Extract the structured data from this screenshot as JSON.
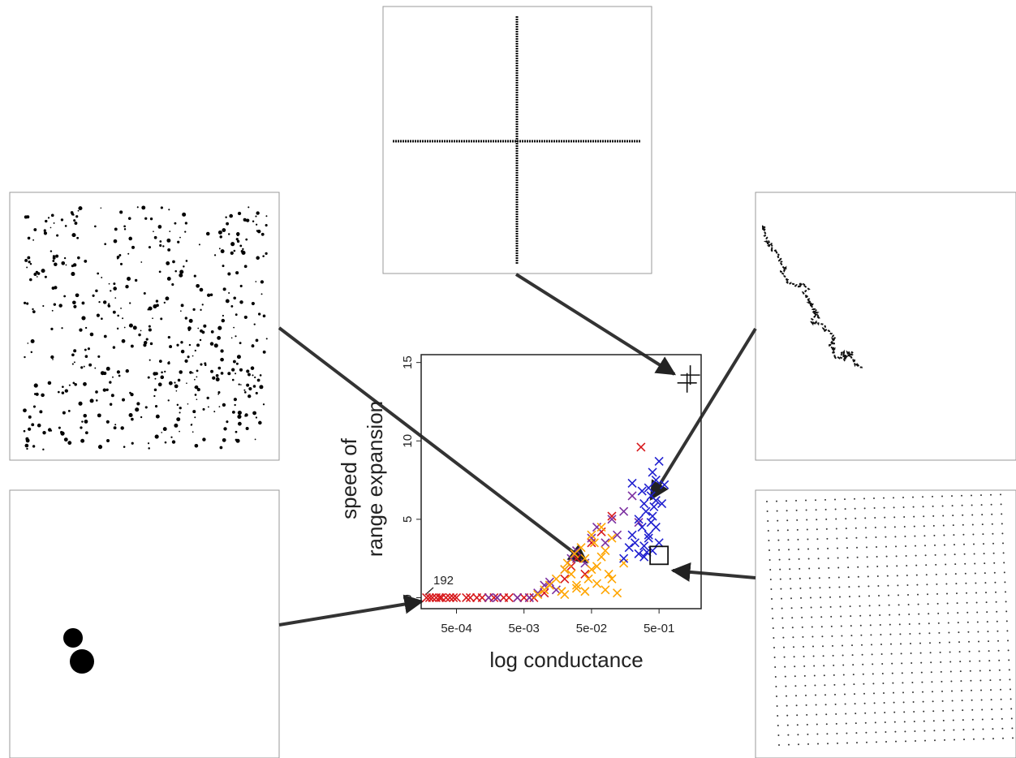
{
  "chart_data": {
    "type": "scatter",
    "xlabel": "log conductance",
    "ylabel": [
      "speed of",
      "range expansion"
    ],
    "annotation": "192",
    "xscale": "log",
    "xlim": [
      0.00015,
      2.1
    ],
    "ylim": [
      -0.7,
      15.5
    ],
    "xticks": [
      {
        "value": 0.0005,
        "label": "5e-04"
      },
      {
        "value": 0.005,
        "label": "5e-03"
      },
      {
        "value": 0.05,
        "label": "5e-02"
      },
      {
        "value": 0.5,
        "label": "5e-01"
      }
    ],
    "yticks": [
      0,
      5,
      10,
      15
    ],
    "series": [
      {
        "color": "#d7191c",
        "marker": "x",
        "x": [
          0.00018,
          0.0002,
          0.00022,
          0.00025,
          0.00028,
          0.0003,
          0.00035,
          0.0004,
          0.00045,
          0.0005,
          0.0007,
          0.0008,
          0.001,
          0.0012,
          0.0015,
          0.0018,
          0.002,
          0.0025,
          0.003,
          0.004,
          0.005,
          0.006,
          0.007,
          0.01,
          0.012,
          0.02,
          0.025,
          0.03,
          0.04,
          0.05,
          0.07,
          0.1,
          0.27
        ],
        "y": [
          0,
          0,
          0,
          0,
          0,
          0,
          0,
          0,
          0,
          0,
          0,
          0,
          0,
          0,
          0,
          0,
          0,
          0,
          0,
          0,
          0,
          0,
          0,
          0.3,
          0.8,
          1.2,
          2,
          2.5,
          1.5,
          3.5,
          4.2,
          5.2,
          9.6
        ]
      },
      {
        "color": "#7b2fa0",
        "marker": "x",
        "x": [
          0.0015,
          0.002,
          0.004,
          0.006,
          0.008,
          0.01,
          0.012,
          0.015,
          0.02,
          0.025,
          0.03,
          0.04,
          0.05,
          0.06,
          0.08,
          0.1,
          0.12,
          0.15,
          0.2,
          0.25
        ],
        "y": [
          0,
          0,
          0,
          0,
          0.3,
          0.8,
          1,
          0.5,
          1.8,
          2.5,
          3,
          2.2,
          3.8,
          4.5,
          3.5,
          5,
          4,
          5.5,
          6.5,
          4.8
        ]
      },
      {
        "color": "#ffa500",
        "marker": "x",
        "x": [
          0.008,
          0.01,
          0.012,
          0.015,
          0.018,
          0.02,
          0.022,
          0.025,
          0.028,
          0.03,
          0.035,
          0.04,
          0.045,
          0.05,
          0.055,
          0.06,
          0.07,
          0.08,
          0.09,
          0.1,
          0.02,
          0.03,
          0.04,
          0.05,
          0.06,
          0.07,
          0.08,
          0.1,
          0.12,
          0.15
        ],
        "y": [
          0.2,
          0.5,
          0.8,
          1.2,
          0.4,
          1.8,
          2.2,
          1.5,
          2.8,
          0.6,
          3.2,
          2.5,
          1.2,
          4,
          3.5,
          2,
          4.5,
          3,
          1.5,
          3.8,
          0.2,
          0.8,
          0.4,
          1.8,
          0.9,
          2.6,
          0.5,
          1.2,
          0.3,
          2.2
        ]
      },
      {
        "color": "#2020d0",
        "marker": "x",
        "x": [
          0.15,
          0.18,
          0.2,
          0.22,
          0.25,
          0.25,
          0.28,
          0.3,
          0.3,
          0.32,
          0.35,
          0.35,
          0.38,
          0.4,
          0.4,
          0.42,
          0.45,
          0.45,
          0.5,
          0.5,
          0.55,
          0.6,
          0.2,
          0.3,
          0.35,
          0.4,
          0.28,
          0.33,
          0.38,
          0.45
        ],
        "y": [
          2.5,
          3.2,
          4,
          3.5,
          5,
          2.8,
          4.5,
          6,
          3.3,
          5.5,
          7,
          4,
          6.5,
          8,
          3,
          5.8,
          7.5,
          4.5,
          8.7,
          3.5,
          6,
          7.2,
          7.3,
          2.6,
          3.8,
          5.2,
          6.8,
          2.9,
          4.8,
          6.2
        ]
      },
      {
        "color": "#111111",
        "marker": "+",
        "x": [
          1.3,
          1.45
        ],
        "y": [
          13.7,
          14.2
        ]
      },
      {
        "color": "#111111",
        "marker": "square",
        "x": [
          0.5
        ],
        "y": [
          2.7
        ]
      }
    ]
  }
}
